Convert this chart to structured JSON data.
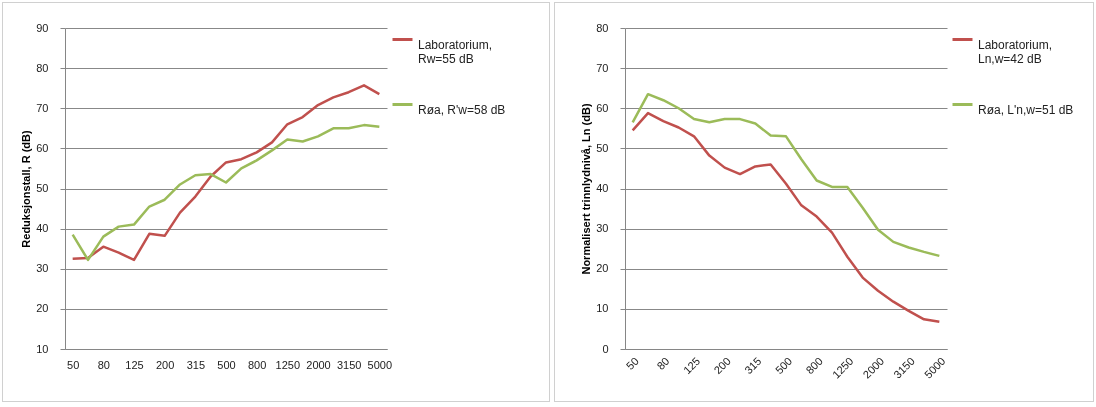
{
  "chart_data": [
    {
      "type": "line",
      "ylabel": "Reduksjonstall,  R (dB)",
      "categories": [
        "50",
        null,
        "80",
        null,
        "125",
        null,
        "200",
        null,
        "315",
        null,
        "500",
        null,
        "800",
        null,
        "1250",
        null,
        "2000",
        null,
        "3150",
        null,
        "5000"
      ],
      "ylim": [
        10,
        90
      ],
      "yticks": [
        10,
        20,
        30,
        40,
        50,
        60,
        70,
        80,
        90
      ],
      "grid": "y",
      "legend": "right",
      "series": [
        {
          "name": "Laboratorium, Rw=55 dB",
          "color": "#c0504d",
          "values": [
            32.5,
            32.7,
            35.5,
            34,
            32.2,
            38.7,
            38.2,
            44,
            48,
            53,
            56.5,
            57.3,
            59,
            61.5,
            66,
            67.8,
            70.8,
            72.7,
            74,
            75.7,
            73.5
          ]
        },
        {
          "name": "Røa, R'w=58 dB",
          "color": "#9bbb59",
          "values": [
            38.5,
            32.2,
            38,
            40.5,
            41,
            45.5,
            47.2,
            51,
            53.3,
            53.6,
            51.5,
            55,
            57,
            59.5,
            62.2,
            61.7,
            63,
            65,
            65,
            65.8,
            65.4
          ]
        }
      ]
    },
    {
      "type": "line",
      "ylabel": "Normalisert trinnlydnivå,  Ln (dB)",
      "categories": [
        "50",
        null,
        "80",
        null,
        "125",
        null,
        "200",
        null,
        "315",
        null,
        "500",
        null,
        "800",
        null,
        "1250",
        null,
        "2000",
        null,
        "3150",
        null,
        "5000"
      ],
      "ylim": [
        0,
        80
      ],
      "yticks": [
        0,
        10,
        20,
        30,
        40,
        50,
        60,
        70,
        80
      ],
      "grid": "y",
      "legend": "right",
      "series": [
        {
          "name": "Laboratorium, Ln,w=42 dB",
          "color": "#c0504d",
          "values": [
            54.5,
            58.8,
            56.8,
            55.2,
            53,
            48.2,
            45.2,
            43.6,
            45.5,
            46,
            41.2,
            35.8,
            33,
            29,
            23,
            17.8,
            14.5,
            11.8,
            9.5,
            7.4,
            6.8
          ]
        },
        {
          "name": "Røa, L'n,w=51 dB",
          "color": "#9bbb59",
          "values": [
            56.5,
            63.5,
            62,
            60,
            57.3,
            56.5,
            57.3,
            57.3,
            56.2,
            53.2,
            53,
            47.3,
            42,
            40.4,
            40.4,
            35.2,
            29.7,
            26.7,
            25.3,
            24.2,
            23.2
          ]
        }
      ]
    }
  ]
}
